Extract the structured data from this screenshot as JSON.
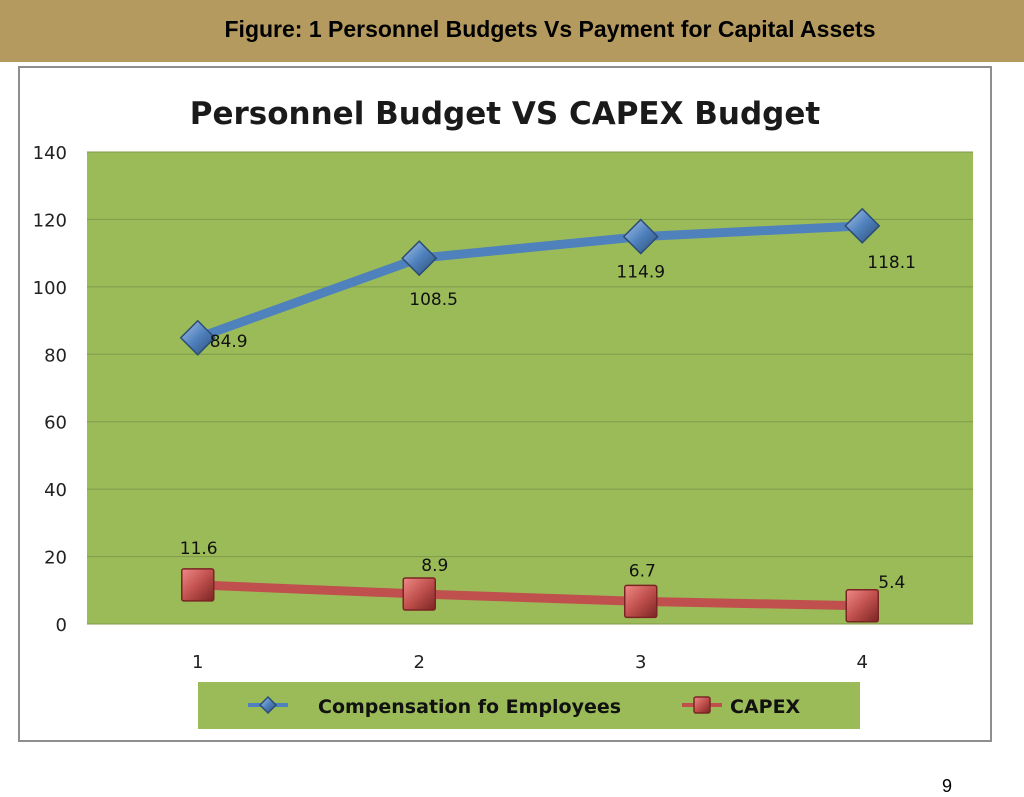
{
  "slide": {
    "title": "Figure: 1 Personnel Budgets Vs Payment for Capital Assets",
    "page_number": "9",
    "header_color": "#b49a5e"
  },
  "chart_data": {
    "type": "line",
    "title": "Personnel  Budget VS CAPEX Budget",
    "categories": [
      "1",
      "2",
      "3",
      "4"
    ],
    "ylim": [
      0,
      140
    ],
    "y_ticks": [
      0,
      20,
      40,
      60,
      80,
      100,
      120,
      140
    ],
    "grid": true,
    "legend_position": "bottom",
    "plot_background": "#9bbb59",
    "series": [
      {
        "name": "Compensation fo Employees",
        "values": [
          84.9,
          108.5,
          114.9,
          118.1
        ],
        "data_labels": [
          "84.9",
          "108.5",
          "114.9",
          "118.1"
        ],
        "color": "#4f81bd",
        "marker": "diamond"
      },
      {
        "name": "CAPEX",
        "values": [
          11.6,
          8.9,
          6.7,
          5.4
        ],
        "data_labels": [
          "11.6",
          "8.9",
          "6.7",
          "5.4"
        ],
        "color": "#c0504d",
        "marker": "square"
      }
    ]
  }
}
